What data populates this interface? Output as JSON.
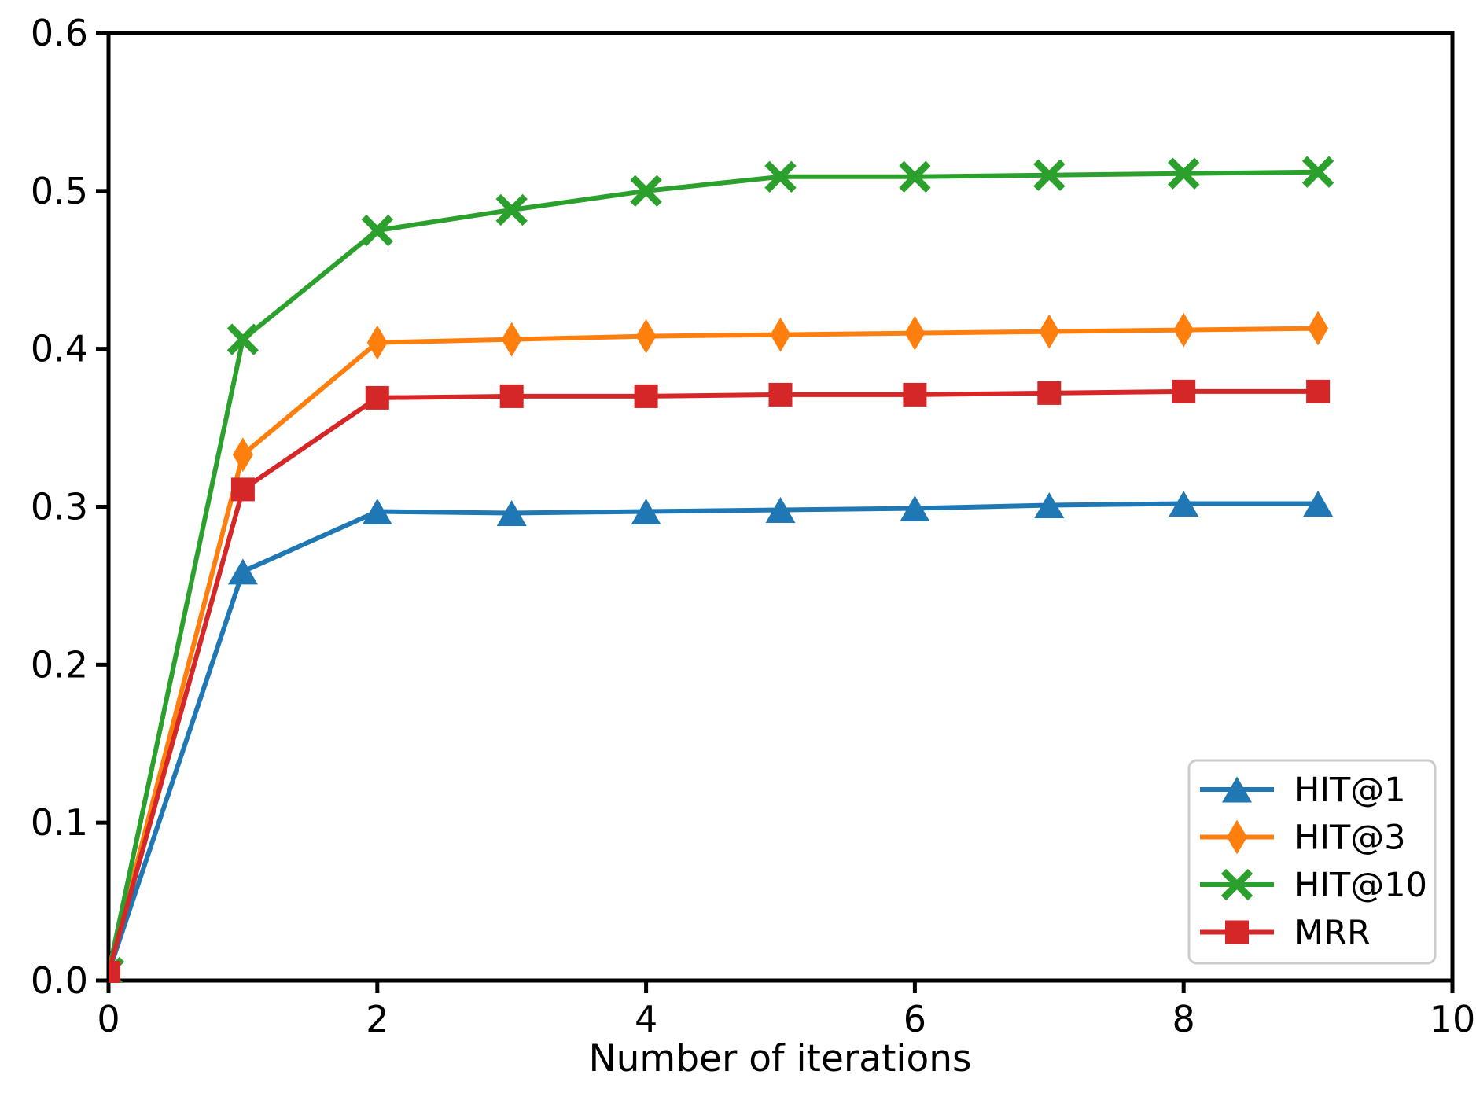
{
  "chart_data": {
    "type": "line",
    "title": "",
    "xlabel": "Number of iterations",
    "ylabel": "",
    "xlim": [
      0,
      10
    ],
    "ylim": [
      0,
      0.6
    ],
    "grid": false,
    "legend_position": "lower right",
    "x": [
      0,
      1,
      2,
      3,
      4,
      5,
      6,
      7,
      8,
      9
    ],
    "series": [
      {
        "name": "HIT@1",
        "color": "#1f77b4",
        "marker": "triangle",
        "values": [
          0.005,
          0.259,
          0.297,
          0.296,
          0.297,
          0.298,
          0.299,
          0.301,
          0.302,
          0.302
        ]
      },
      {
        "name": "HIT@3",
        "color": "#ff7f0e",
        "marker": "diamond",
        "values": [
          0.005,
          0.333,
          0.404,
          0.406,
          0.408,
          0.409,
          0.41,
          0.411,
          0.412,
          0.413
        ]
      },
      {
        "name": "HIT@10",
        "color": "#2ca02c",
        "marker": "x",
        "values": [
          0.005,
          0.406,
          0.475,
          0.488,
          0.5,
          0.509,
          0.509,
          0.51,
          0.511,
          0.512
        ]
      },
      {
        "name": "MRR",
        "color": "#d62728",
        "marker": "square",
        "values": [
          0.005,
          0.311,
          0.369,
          0.37,
          0.37,
          0.371,
          0.371,
          0.372,
          0.373,
          0.373
        ]
      }
    ],
    "x_ticks": [
      {
        "value": 0,
        "label": "0"
      },
      {
        "value": 2,
        "label": "2"
      },
      {
        "value": 4,
        "label": "4"
      },
      {
        "value": 6,
        "label": "6"
      },
      {
        "value": 8,
        "label": "8"
      },
      {
        "value": 10,
        "label": "10"
      }
    ],
    "y_ticks": [
      {
        "value": 0.0,
        "label": "0.0"
      },
      {
        "value": 0.1,
        "label": "0.1"
      },
      {
        "value": 0.2,
        "label": "0.2"
      },
      {
        "value": 0.3,
        "label": "0.3"
      },
      {
        "value": 0.4,
        "label": "0.4"
      },
      {
        "value": 0.5,
        "label": "0.5"
      },
      {
        "value": 0.6,
        "label": "0.6"
      }
    ],
    "axis_color": "#000000",
    "background": "#ffffff"
  }
}
